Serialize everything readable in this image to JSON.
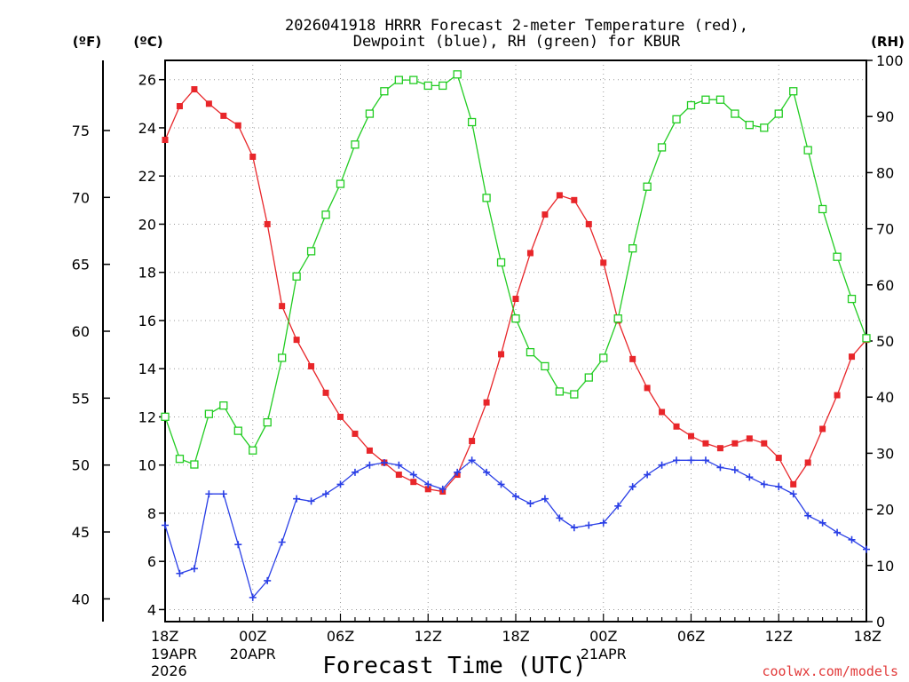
{
  "chart_data": {
    "type": "line",
    "title_lines": [
      "2026041918 HRRR Forecast 2-meter Temperature (red),",
      "Dewpoint (blue), RH (green) for KBUR"
    ],
    "xlabel": "Forecast Time (UTC)",
    "credit": "coolwx.com/models",
    "y_units": {
      "fahrenheit": "(ºF)",
      "celsius": "(ºC)",
      "rh": "(RH)"
    },
    "celsius_axis": {
      "min": 3.5,
      "max": 26.8,
      "ticks": [
        "4",
        "6",
        "8",
        "10",
        "12",
        "14",
        "16",
        "18",
        "20",
        "22",
        "24",
        "26"
      ]
    },
    "fahrenheit_axis": {
      "ticks": [
        "40",
        "45",
        "50",
        "55",
        "60",
        "65",
        "70",
        "75"
      ]
    },
    "rh_axis": {
      "min": 0,
      "max": 100,
      "ticks": [
        "0",
        "10",
        "20",
        "30",
        "40",
        "50",
        "60",
        "70",
        "80",
        "90",
        "100"
      ]
    },
    "x_axis": {
      "min_hour": 0,
      "max_hour": 48,
      "ticks": [
        {
          "hour": 0,
          "label": "18Z",
          "sub": [
            "19APR",
            "2026"
          ]
        },
        {
          "hour": 6,
          "label": "00Z",
          "sub": [
            "20APR"
          ]
        },
        {
          "hour": 12,
          "label": "06Z",
          "sub": []
        },
        {
          "hour": 18,
          "label": "12Z",
          "sub": []
        },
        {
          "hour": 24,
          "label": "18Z",
          "sub": []
        },
        {
          "hour": 30,
          "label": "00Z",
          "sub": [
            "21APR"
          ]
        },
        {
          "hour": 36,
          "label": "06Z",
          "sub": []
        },
        {
          "hour": 42,
          "label": "12Z",
          "sub": []
        },
        {
          "hour": 48,
          "label": "18Z",
          "sub": []
        }
      ]
    },
    "series": [
      {
        "name": "2-meter Temperature",
        "axis": "celsius",
        "color": "#e8262a",
        "marker": "filled-square",
        "values": [
          23.5,
          24.9,
          25.6,
          25.0,
          24.5,
          24.1,
          22.8,
          20.0,
          16.6,
          15.2,
          14.1,
          13.0,
          12.0,
          11.3,
          10.6,
          10.1,
          9.6,
          9.3,
          9.0,
          8.9,
          9.6,
          11.0,
          12.6,
          14.6,
          16.9,
          18.8,
          20.4,
          21.2,
          21.0,
          20.0,
          18.4,
          16.0,
          14.4,
          13.2,
          12.2,
          11.6,
          11.2,
          10.9,
          10.7,
          10.9,
          11.1,
          10.9,
          10.3,
          9.2,
          10.1,
          11.5,
          12.9,
          14.5,
          15.2
        ]
      },
      {
        "name": "Dewpoint",
        "axis": "celsius",
        "color": "#2a3fe6",
        "marker": "plus",
        "values": [
          7.5,
          5.5,
          5.7,
          8.8,
          8.8,
          6.7,
          4.5,
          5.2,
          6.8,
          8.6,
          8.5,
          8.8,
          9.2,
          9.7,
          10.0,
          10.1,
          10.0,
          9.6,
          9.2,
          9.0,
          9.7,
          10.2,
          9.7,
          9.2,
          8.7,
          8.4,
          8.6,
          7.8,
          7.4,
          7.5,
          7.6,
          8.3,
          9.1,
          9.6,
          10.0,
          10.2,
          10.2,
          10.2,
          9.9,
          9.8,
          9.5,
          9.2,
          9.1,
          8.8,
          7.9,
          7.6,
          7.2,
          6.9,
          6.5
        ]
      },
      {
        "name": "RH",
        "axis": "rh",
        "color": "#22cc22",
        "marker": "open-square",
        "values": [
          36.5,
          29,
          28,
          37,
          38.5,
          34,
          30.5,
          35.5,
          47,
          61.5,
          66,
          72.5,
          78,
          85,
          90.5,
          94.5,
          96.5,
          96.5,
          95.5,
          95.5,
          97.5,
          89,
          75.5,
          64,
          54,
          48,
          45.5,
          41,
          40.5,
          43.5,
          47,
          54,
          66.5,
          77.5,
          84.5,
          89.5,
          92,
          93,
          93,
          90.5,
          88.5,
          88,
          90.5,
          94.5,
          84,
          73.5,
          65,
          57.5,
          50.5
        ]
      }
    ]
  }
}
